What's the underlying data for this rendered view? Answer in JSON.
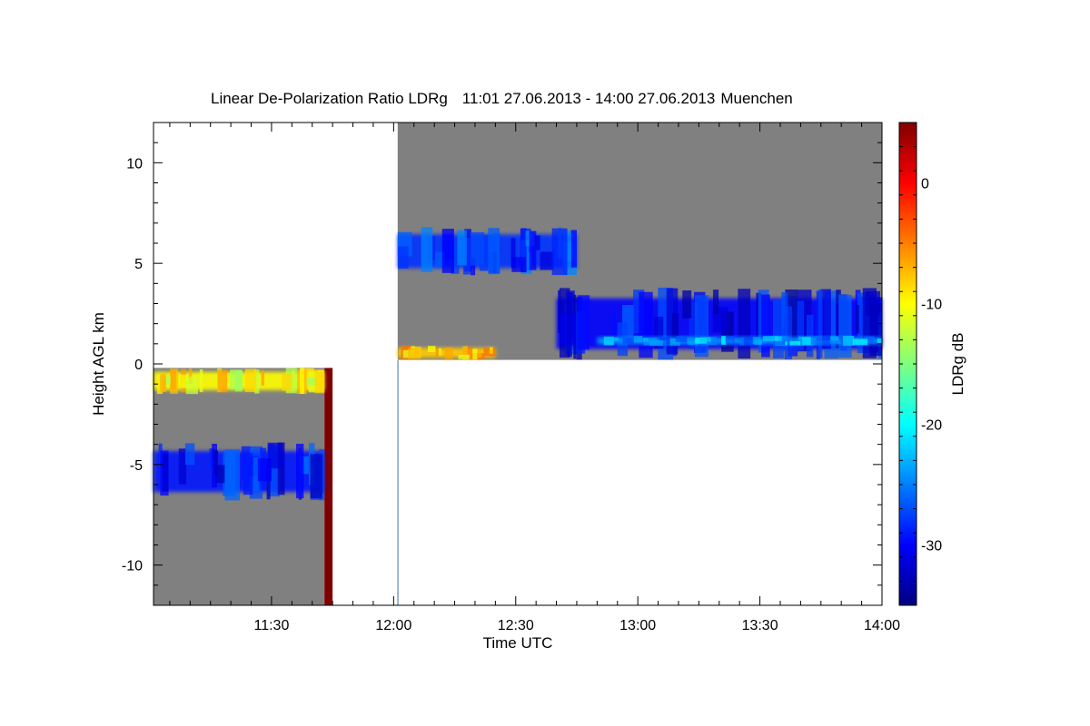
{
  "chart_data": {
    "type": "heatmap",
    "title": "Linear De-Polarization Ratio LDRg",
    "time_range": "11:01 27.06.2013 - 14:00 27.06.2013",
    "location": "Muenchen",
    "xlabel": "Time UTC",
    "ylabel": "Height AGL km",
    "colorbar_label": "LDRg dB",
    "x_range": [
      "11:01",
      "14:00"
    ],
    "x_ticks": [
      "11:30",
      "12:00",
      "12:30",
      "13:00",
      "13:30",
      "14:00"
    ],
    "ylim": [
      -12,
      12
    ],
    "y_ticks": [
      10,
      5,
      0,
      -5,
      -10
    ],
    "colorbar_range": [
      -35,
      5
    ],
    "colorbar_ticks": [
      0,
      -10,
      -20,
      -30
    ],
    "colormap": "jet",
    "no_data_color": "#808080",
    "colorbar_colors": [
      "#00007f",
      "#0000ff",
      "#007fff",
      "#00ffff",
      "#7fff7f",
      "#ffff00",
      "#ff7f00",
      "#ff0000",
      "#7f0000"
    ],
    "regions": [
      {
        "t_start": "12:01",
        "t_end": "14:00",
        "h_bottom": 0.2,
        "h_top": 12,
        "fill": "no-data"
      },
      {
        "t_start": "11:01",
        "t_end": "11:43",
        "h_bottom": -12,
        "h_top": -0.2,
        "fill": "no-data"
      },
      {
        "t_start": "11:43",
        "t_end": "11:45",
        "h_bottom": -12,
        "h_top": -0.2,
        "fill": "saturated",
        "ldr_db": 5
      }
    ],
    "layers": [
      {
        "t_start": "12:01",
        "t_end": "12:45",
        "h_bottom": 4.4,
        "h_top": 6.8,
        "ldr_db": -28
      },
      {
        "t_start": "12:40",
        "t_end": "14:00",
        "h_bottom": 0.2,
        "h_top": 3.8,
        "ldr_db": -30
      },
      {
        "t_start": "12:50",
        "t_end": "14:00",
        "h_bottom": 0.9,
        "h_top": 1.4,
        "ldr_db": -24
      },
      {
        "t_start": "12:01",
        "t_end": "12:25",
        "h_bottom": 0.2,
        "h_top": 0.9,
        "ldr_db": -8
      },
      {
        "t_start": "11:01",
        "t_end": "11:43",
        "h_bottom": -6.8,
        "h_top": -3.9,
        "ldr_db": -29
      },
      {
        "t_start": "11:01",
        "t_end": "11:43",
        "h_bottom": -1.5,
        "h_top": -0.2,
        "ldr_db": -10
      }
    ]
  }
}
